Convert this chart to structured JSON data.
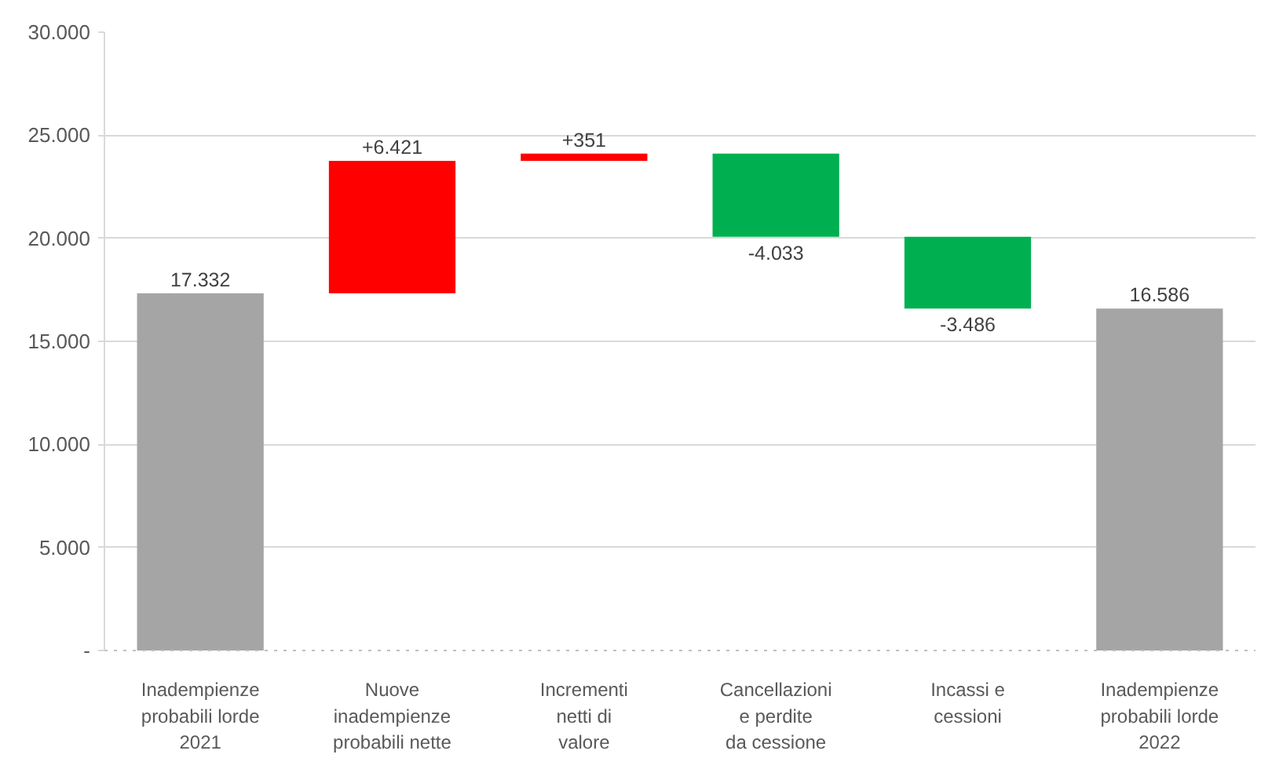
{
  "chart_data": {
    "type": "bar",
    "categories": [
      "Inadempienze\nprobabili lorde\n2021",
      "Nuove\ninadempienze\nprobabili nette",
      "Incrementi\nnetti di\nvalore",
      "Cancellazioni\ne perdite\nda cessione",
      "Incassi e\ncessioni",
      "Inadempienze\nprobabili lorde\n2022"
    ],
    "values": [
      17332,
      6421,
      351,
      -4033,
      -3486,
      16586
    ],
    "base": [
      0,
      17332,
      23753,
      24104,
      20071,
      0
    ],
    "colors": [
      "#a5a5a5",
      "#ff0000",
      "#ff0000",
      "#00b050",
      "#00b050",
      "#a5a5a5"
    ],
    "value_labels": [
      "17.332",
      "+6.421",
      "+351",
      "-4.033",
      "-3.486",
      "16.586"
    ],
    "ylim": [
      0,
      30000
    ],
    "yticks": [
      {
        "value": 0,
        "label": "-"
      },
      {
        "value": 5000,
        "label": "5.000"
      },
      {
        "value": 10000,
        "label": "10.000"
      },
      {
        "value": 15000,
        "label": "15.000"
      },
      {
        "value": 20000,
        "label": "20.000"
      },
      {
        "value": 25000,
        "label": "25.000"
      },
      {
        "value": 30000,
        "label": "30.000"
      }
    ],
    "grid": "y"
  }
}
